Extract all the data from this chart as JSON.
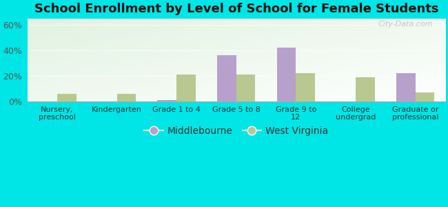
{
  "title": "School Enrollment by Level of School for Female Students",
  "categories": [
    "Nursery,\npreschool",
    "Kindergarten",
    "Grade 1 to 4",
    "Grade 5 to 8",
    "Grade 9 to\n12",
    "College\nundergrad",
    "Graduate or\nprofessional"
  ],
  "middlebourne": [
    0,
    0,
    1,
    36,
    42,
    0,
    22
  ],
  "west_virginia": [
    6,
    6,
    21,
    21,
    22,
    19,
    7
  ],
  "middlebourne_color": "#b8a0cc",
  "west_virginia_color": "#b8c890",
  "ylim": [
    0,
    65
  ],
  "yticks": [
    0,
    20,
    40,
    60
  ],
  "ytick_labels": [
    "0%",
    "20%",
    "40%",
    "60%"
  ],
  "background_color": "#00e5e5",
  "title_fontsize": 13,
  "legend_labels": [
    "Middlebourne",
    "West Virginia"
  ],
  "bar_width": 0.32,
  "watermark": "City-Data.com"
}
